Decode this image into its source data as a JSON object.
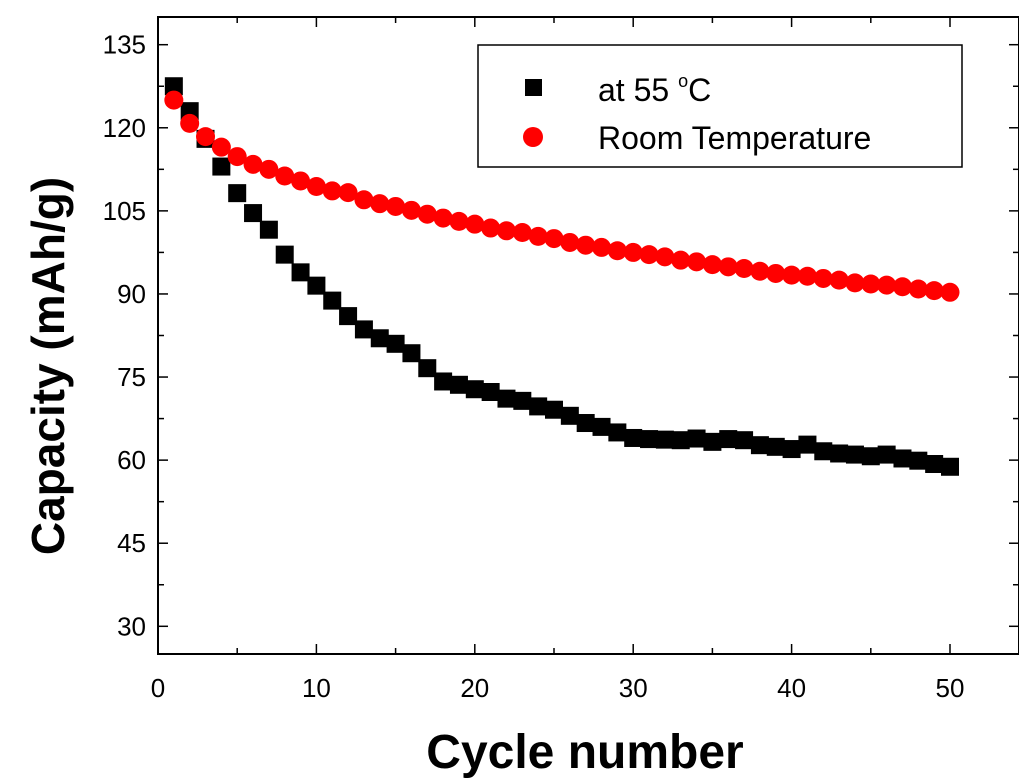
{
  "chart_data": {
    "type": "scatter",
    "xlabel": "Cycle number",
    "ylabel": "Capacity (mAh/g)",
    "xlim": [
      0,
      55
    ],
    "ylim": [
      25,
      140
    ],
    "x_ticks": [
      0,
      10,
      20,
      30,
      40,
      50
    ],
    "y_ticks": [
      30,
      45,
      60,
      75,
      90,
      105,
      120,
      135
    ],
    "grid": false,
    "legend_position": "top-right",
    "series": [
      {
        "name": "at 55 °C",
        "legend_main": "at 55 ",
        "legend_sup": "o",
        "legend_tail": "C",
        "marker": "square",
        "color": "#000000",
        "x": [
          1,
          2,
          3,
          4,
          5,
          6,
          7,
          8,
          9,
          10,
          11,
          12,
          13,
          14,
          15,
          16,
          17,
          18,
          19,
          20,
          21,
          22,
          23,
          24,
          25,
          26,
          27,
          28,
          29,
          30,
          31,
          32,
          33,
          34,
          35,
          36,
          37,
          38,
          39,
          40,
          41,
          42,
          43,
          44,
          45,
          46,
          47,
          48,
          49,
          50
        ],
        "y": [
          127.5,
          123.0,
          118.0,
          113.0,
          108.2,
          104.6,
          101.6,
          97.1,
          93.9,
          91.5,
          88.8,
          86.0,
          83.6,
          82.0,
          81.0,
          79.3,
          76.6,
          74.2,
          73.6,
          72.8,
          72.3,
          71.1,
          70.7,
          69.7,
          69.1,
          68.0,
          66.7,
          66.0,
          65.0,
          64.0,
          63.8,
          63.7,
          63.6,
          63.9,
          63.3,
          63.8,
          63.6,
          62.7,
          62.4,
          62.0,
          62.8,
          61.6,
          61.2,
          61.0,
          60.7,
          61.0,
          60.3,
          59.9,
          59.3,
          58.8
        ]
      },
      {
        "name": "Room Temperature",
        "marker": "circle",
        "color": "#ff0000",
        "x": [
          1,
          2,
          3,
          4,
          5,
          6,
          7,
          8,
          9,
          10,
          11,
          12,
          13,
          14,
          15,
          16,
          17,
          18,
          19,
          20,
          21,
          22,
          23,
          24,
          25,
          26,
          27,
          28,
          29,
          30,
          31,
          32,
          33,
          34,
          35,
          36,
          37,
          38,
          39,
          40,
          41,
          42,
          43,
          44,
          45,
          46,
          47,
          48,
          49,
          50
        ],
        "y": [
          125.0,
          120.8,
          118.4,
          116.5,
          114.8,
          113.4,
          112.5,
          111.3,
          110.4,
          109.4,
          108.6,
          108.3,
          107.0,
          106.3,
          105.8,
          105.1,
          104.4,
          103.7,
          103.1,
          102.6,
          101.9,
          101.4,
          101.1,
          100.4,
          100.0,
          99.3,
          98.8,
          98.4,
          97.8,
          97.5,
          97.1,
          96.7,
          96.1,
          95.8,
          95.3,
          94.9,
          94.6,
          94.1,
          93.7,
          93.4,
          93.2,
          92.8,
          92.5,
          92.0,
          91.8,
          91.6,
          91.3,
          90.9,
          90.6,
          90.3
        ]
      }
    ]
  }
}
